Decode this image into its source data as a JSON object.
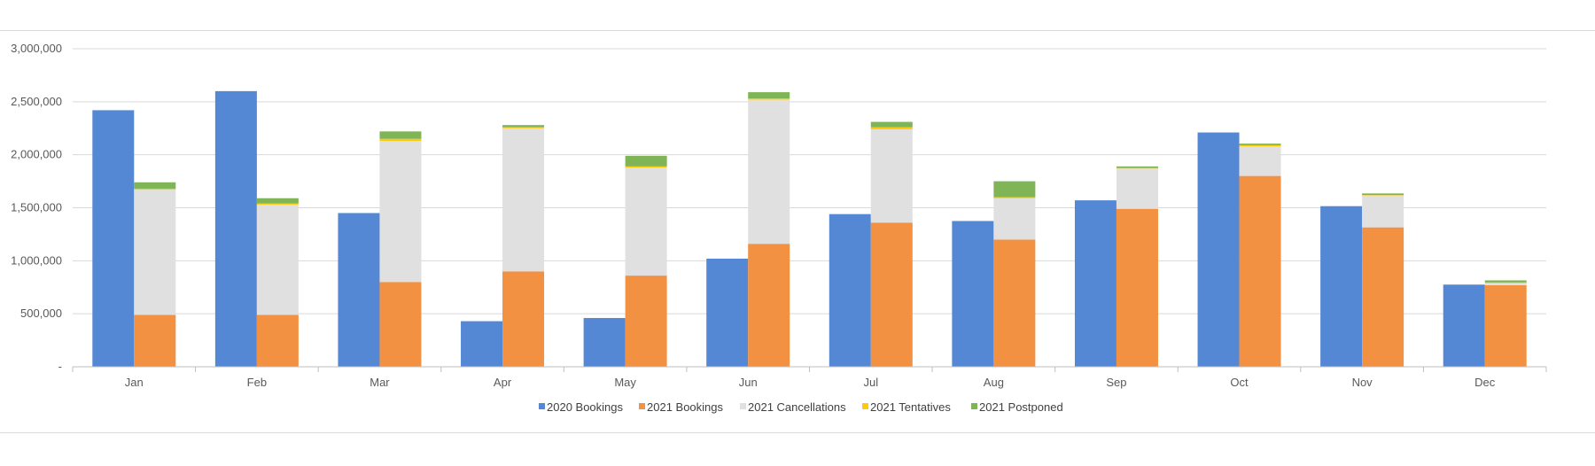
{
  "chart_data": {
    "type": "bar",
    "layout": "clustered + stacked",
    "categories": [
      "Jan",
      "Feb",
      "Mar",
      "Apr",
      "May",
      "Jun",
      "Jul",
      "Aug",
      "Sep",
      "Oct",
      "Nov",
      "Dec"
    ],
    "y_ticks": [
      {
        "value": 0,
        "label": "-"
      },
      {
        "value": 500000,
        "label": "500,000"
      },
      {
        "value": 1000000,
        "label": "1,000,000"
      },
      {
        "value": 1500000,
        "label": "1,500,000"
      },
      {
        "value": 2000000,
        "label": "2,000,000"
      },
      {
        "value": 2500000,
        "label": "2,500,000"
      },
      {
        "value": 3000000,
        "label": "3,000,000"
      }
    ],
    "ylim": [
      0,
      3000000
    ],
    "grid": true,
    "legend_position": "bottom",
    "series": [
      {
        "name": "2020 Bookings",
        "stack": "a",
        "color": "#5588d4",
        "values": [
          2420000,
          2600000,
          1450000,
          430000,
          460000,
          1020000,
          1440000,
          1375000,
          1570000,
          2210000,
          1515000,
          775000
        ]
      },
      {
        "name": "2021 Bookings",
        "stack": "b",
        "color": "#f29141",
        "values": [
          490000,
          490000,
          800000,
          900000,
          860000,
          1160000,
          1360000,
          1200000,
          1490000,
          1800000,
          1315000,
          770000
        ]
      },
      {
        "name": "2021 Cancellations",
        "stack": "b",
        "color": "#e0e0e0",
        "values": [
          1180000,
          1040000,
          1330000,
          1350000,
          1020000,
          1360000,
          880000,
          390000,
          380000,
          280000,
          300000,
          20000
        ]
      },
      {
        "name": "2021 Tentatives",
        "stack": "b",
        "color": "#ffc90e",
        "values": [
          10000,
          10000,
          20000,
          10000,
          10000,
          10000,
          20000,
          10000,
          5000,
          10000,
          5000,
          5000
        ]
      },
      {
        "name": "2021 Postponed",
        "stack": "b",
        "color": "#7fb556",
        "values": [
          60000,
          50000,
          70000,
          20000,
          100000,
          60000,
          50000,
          150000,
          15000,
          15000,
          15000,
          20000
        ]
      }
    ]
  }
}
